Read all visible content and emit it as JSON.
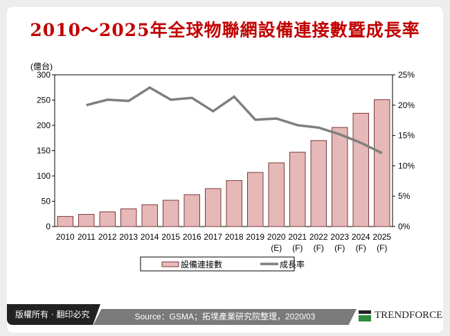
{
  "title": "2010～2025年全球物聯網設備連接數暨成長率",
  "footer": {
    "copyright": "版權所有 · 翻印必究",
    "source": "Source：GSMA；拓墣產業研究院整理，2020/03",
    "logo": "TRENDFORCE"
  },
  "chart_data": {
    "type": "bar+line",
    "title": "2010～2025年全球物聯網設備連接數暨成長率",
    "categories": [
      "2010",
      "2011",
      "2012",
      "2013",
      "2014",
      "2015",
      "2016",
      "2017",
      "2018",
      "2019",
      "2020\n(E)",
      "2021\n(F)",
      "2022\n(F)",
      "2023\n(F)",
      "2024\n(F)",
      "2025\n(F)"
    ],
    "y_left": {
      "label": "(億台)",
      "range": [
        0,
        300
      ],
      "ticks": [
        "0",
        "50",
        "100",
        "150",
        "200",
        "250",
        "300"
      ]
    },
    "y_right": {
      "range": [
        0,
        25
      ],
      "ticks": [
        "0%",
        "5%",
        "10%",
        "15%",
        "20%",
        "25%"
      ]
    },
    "series": [
      {
        "name": "設備連接數",
        "type": "bar",
        "axis": "left",
        "color": "#e6b8b7",
        "edge": "#7a3b3b",
        "values": [
          20,
          24,
          29,
          35,
          43,
          52,
          63,
          75,
          91,
          107,
          126,
          147,
          170,
          196,
          224,
          251
        ]
      },
      {
        "name": "成長率",
        "type": "line",
        "axis": "right",
        "color": "#7f7f7f",
        "values": [
          null,
          20.0,
          20.9,
          20.7,
          22.9,
          20.9,
          21.2,
          19.0,
          21.4,
          17.6,
          17.8,
          16.7,
          16.3,
          15.2,
          13.8,
          12.1
        ]
      }
    ],
    "legend": "bottom"
  }
}
